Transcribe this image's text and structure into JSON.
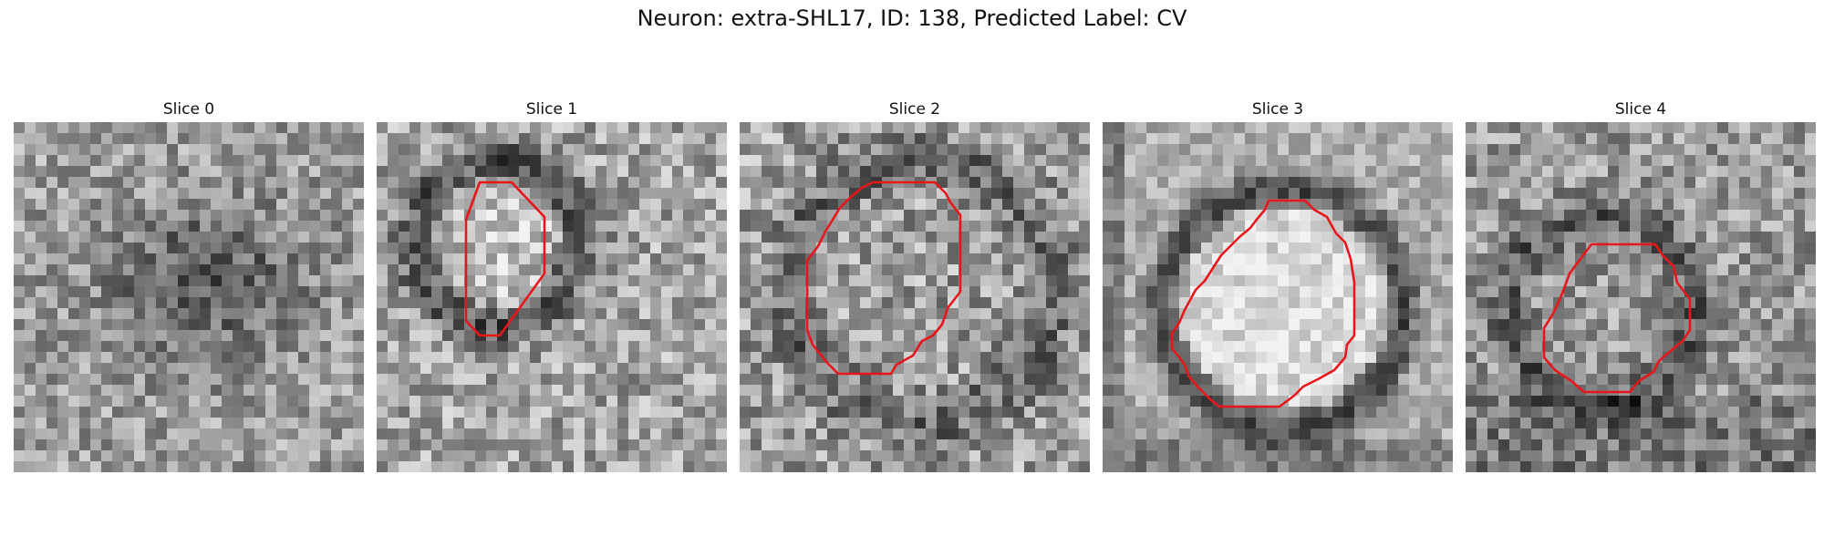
{
  "figure": {
    "title": "Neuron: extra-SHL17, ID: 138, Predicted Label: CV"
  },
  "panels": [
    {
      "title": "Slice 0",
      "has_contour": false,
      "pattern": "dark-blob",
      "image": "grayscale-noise-slice-0"
    },
    {
      "title": "Slice 1",
      "has_contour": true,
      "pattern": "small-ring",
      "image": "grayscale-noise-slice-1"
    },
    {
      "title": "Slice 2",
      "has_contour": true,
      "pattern": "ring",
      "image": "grayscale-noise-slice-2"
    },
    {
      "title": "Slice 3",
      "has_contour": true,
      "pattern": "bright-disc",
      "image": "grayscale-noise-slice-3"
    },
    {
      "title": "Slice 4",
      "has_contour": true,
      "pattern": "small-ring",
      "image": "grayscale-noise-slice-4"
    }
  ],
  "colors": {
    "contour": "#e8161b"
  }
}
